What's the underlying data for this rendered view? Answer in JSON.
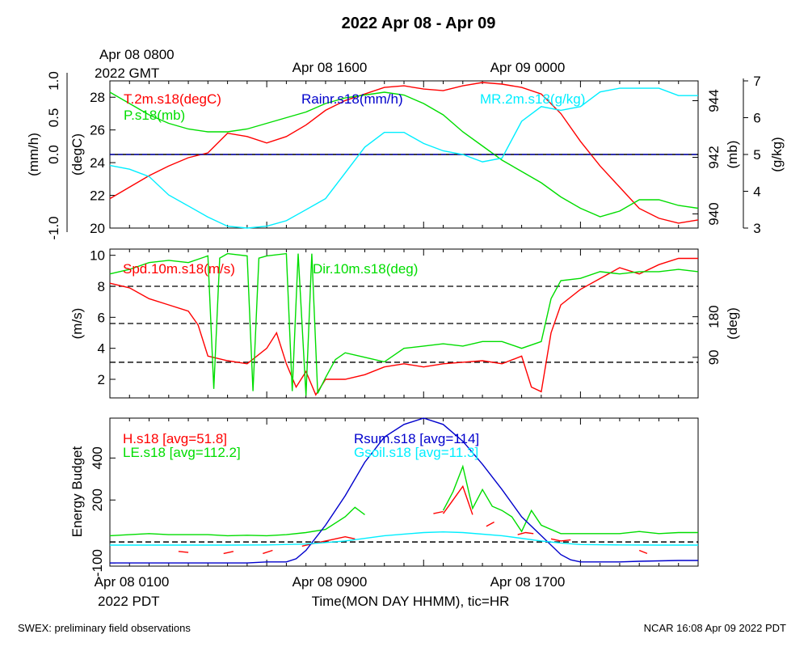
{
  "title": "2022 Apr 08 - Apr 09",
  "top_time_labels": {
    "first_line1": "Apr 08 0800",
    "first_line2": "2022 GMT",
    "second": "Apr 08 1600",
    "third": "Apr 09 0000"
  },
  "bottom_time_labels": {
    "first": "Apr 08 0100",
    "first_sub": "2022 PDT",
    "second": "Apr 08 0900",
    "third": "Apr 08 1700",
    "xlabel": "Time(MON DAY HHMM), tic=HR"
  },
  "footer": {
    "left": "SWEX: preliminary field observations",
    "right": "NCAR 16:08 Apr 09 2022 PDT"
  },
  "colors": {
    "red": "#ff0000",
    "green": "#00dd00",
    "blue": "#0000cc",
    "cyan": "#00eeff",
    "black": "#000000"
  },
  "chart_data": [
    {
      "type": "line",
      "panel": "top",
      "x_range_hours": [
        0,
        30
      ],
      "axes": {
        "left_outer": {
          "label": "(mm/h)",
          "range": [
            -1.0,
            1.0
          ],
          "ticks": [
            "-1.0",
            "0.0",
            "0.5",
            "1.0"
          ]
        },
        "left_inner": {
          "label": "(degC)",
          "range": [
            20,
            29
          ],
          "ticks": [
            "20",
            "22",
            "24",
            "26",
            "28"
          ]
        },
        "right_inner": {
          "label": "(mb)",
          "range": [
            939.5,
            944.7
          ],
          "ticks": [
            "940",
            "942",
            "944"
          ]
        },
        "right_outer": {
          "label": "(g/kg)",
          "range": [
            3,
            7
          ],
          "ticks": [
            "3",
            "4",
            "5",
            "6",
            "7"
          ]
        }
      },
      "legend": [
        "T.2m.s18(degC)",
        "P.s18(mb)",
        "Rainr.s18(mm/h)",
        "MR.2m.s18(g/kg)"
      ],
      "series": [
        {
          "name": "T.2m.s18(degC)",
          "axis": "left_inner",
          "color": "red",
          "x": [
            0,
            1,
            2,
            3,
            4,
            5,
            6,
            7,
            8,
            9,
            10,
            11,
            12,
            13,
            14,
            15,
            16,
            17,
            18,
            19,
            20,
            21,
            22,
            23,
            24,
            25,
            26,
            27,
            28,
            29,
            30
          ],
          "y": [
            21.8,
            22.5,
            23.2,
            23.8,
            24.3,
            24.6,
            25.8,
            25.6,
            25.2,
            25.6,
            26.3,
            27.2,
            27.8,
            28.2,
            28.6,
            28.7,
            28.5,
            28.4,
            28.7,
            28.9,
            28.8,
            28.6,
            28.2,
            27.0,
            25.3,
            23.8,
            22.5,
            21.2,
            20.6,
            20.3,
            20.5
          ]
        },
        {
          "name": "P.s18(mb)",
          "axis": "right_inner",
          "color": "green",
          "x": [
            0,
            1,
            2,
            3,
            4,
            5,
            6,
            7,
            8,
            9,
            10,
            11,
            12,
            13,
            14,
            15,
            16,
            17,
            18,
            19,
            20,
            21,
            22,
            23,
            24,
            25,
            26,
            27,
            28,
            29,
            30
          ],
          "y": [
            944.3,
            943.9,
            943.5,
            943.2,
            943.0,
            942.9,
            942.9,
            943.0,
            943.2,
            943.4,
            943.6,
            943.9,
            944.1,
            944.2,
            944.3,
            944.2,
            943.9,
            943.5,
            942.9,
            942.4,
            941.9,
            941.5,
            941.1,
            940.6,
            940.2,
            939.9,
            940.1,
            940.5,
            940.5,
            940.3,
            940.2
          ]
        },
        {
          "name": "Rainr.s18(mm/h)",
          "axis": "left_outer",
          "color": "blue",
          "x": [
            0,
            30
          ],
          "y": [
            0.0,
            0.0
          ]
        },
        {
          "name": "MR.2m.s18(g/kg)",
          "axis": "right_outer",
          "color": "cyan",
          "x": [
            0,
            1,
            2,
            3,
            4,
            5,
            6,
            7,
            8,
            9,
            10,
            11,
            12,
            13,
            14,
            15,
            16,
            17,
            18,
            19,
            20,
            21,
            22,
            23,
            24,
            25,
            26,
            27,
            28,
            29,
            30
          ],
          "y": [
            4.7,
            4.6,
            4.4,
            3.9,
            3.6,
            3.3,
            3.05,
            3.0,
            3.05,
            3.2,
            3.5,
            3.8,
            4.5,
            5.2,
            5.6,
            5.6,
            5.3,
            5.1,
            5.0,
            4.8,
            4.9,
            5.9,
            6.3,
            6.2,
            6.3,
            6.7,
            6.8,
            6.8,
            6.8,
            6.6,
            6.6
          ]
        }
      ]
    },
    {
      "type": "line",
      "panel": "middle",
      "x_range_hours": [
        0,
        30
      ],
      "axes": {
        "left": {
          "label": "(m/s)",
          "range": [
            0.8,
            10.4
          ],
          "ticks": [
            "2",
            "4",
            "6",
            "8",
            "10"
          ]
        },
        "right": {
          "label": "(deg)",
          "range": [
            0,
            330
          ],
          "ticks": [
            "90",
            "180"
          ]
        }
      },
      "reference_lines_m_s": [
        3.1,
        5.6,
        8.0
      ],
      "legend": [
        "Spd.10m.s18(m/s)",
        "Dir.10m.s18(deg)"
      ],
      "series": [
        {
          "name": "Spd.10m.s18(m/s)",
          "axis": "left",
          "color": "red",
          "x": [
            0,
            1,
            2,
            3,
            4,
            4.5,
            5,
            6,
            7,
            8,
            8.5,
            9,
            9.5,
            10,
            10.5,
            11,
            12,
            13,
            14,
            15,
            16,
            17,
            18,
            19,
            20,
            21,
            21.5,
            22,
            22.5,
            23,
            24,
            25,
            26,
            27,
            28,
            29,
            30
          ],
          "y": [
            8.2,
            7.9,
            7.2,
            6.8,
            6.4,
            5.5,
            3.5,
            3.2,
            3.0,
            4.0,
            5.0,
            3.0,
            1.5,
            2.5,
            1.0,
            2.0,
            2.0,
            2.3,
            2.8,
            3.0,
            2.8,
            3.0,
            3.1,
            3.2,
            3.0,
            3.5,
            1.5,
            1.2,
            5.0,
            6.8,
            7.8,
            8.5,
            9.2,
            8.8,
            9.4,
            9.8,
            9.8
          ]
        },
        {
          "name": "Dir.10m.s18(deg)",
          "axis": "right",
          "color": "green",
          "x": [
            0,
            1,
            2,
            3,
            4,
            5,
            5.3,
            5.6,
            6,
            7,
            7.3,
            7.6,
            8,
            9,
            9.3,
            9.6,
            10,
            10.3,
            10.6,
            11,
            11.5,
            12,
            13,
            14,
            15,
            16,
            17,
            18,
            19,
            20,
            21,
            22,
            22.5,
            23,
            24,
            25,
            26,
            27,
            28,
            29,
            30
          ],
          "y": [
            275,
            285,
            300,
            305,
            300,
            315,
            20,
            310,
            320,
            315,
            15,
            310,
            315,
            320,
            15,
            320,
            5,
            320,
            10,
            45,
            85,
            100,
            90,
            80,
            110,
            115,
            120,
            115,
            125,
            125,
            110,
            125,
            220,
            260,
            265,
            280,
            275,
            280,
            280,
            285,
            280
          ]
        }
      ]
    },
    {
      "type": "line",
      "panel": "bottom",
      "x_range_hours": [
        0,
        30
      ],
      "axes": {
        "left": {
          "label": "Energy Budget",
          "range": [
            -115,
            590
          ],
          "ticks": [
            "-100",
            "200",
            "400"
          ]
        }
      },
      "reference_lines": [
        0
      ],
      "legend": [
        "H.s18 [avg=51.8]",
        "LE.s18 [avg=112.2]",
        "Rsum.s18 [avg=114]",
        "Gsoil.s18 [avg=11.3]"
      ],
      "series": [
        {
          "name": "H.s18 [avg=51.8]",
          "color": "red",
          "segments": [
            {
              "x": [
                3.5,
                4.0
              ],
              "y": [
                -45,
                -50
              ]
            },
            {
              "x": [
                5.8,
                6.3
              ],
              "y": [
                -55,
                -45
              ]
            },
            {
              "x": [
                7.8,
                8.3
              ],
              "y": [
                -55,
                -40
              ]
            },
            {
              "x": [
                9.8,
                10.5,
                11.0,
                11.5,
                12.0,
                12.5
              ],
              "y": [
                -20,
                -5,
                5,
                15,
                25,
                15
              ]
            },
            {
              "x": [
                16.5,
                17.0
              ],
              "y": [
                135,
                145
              ]
            },
            {
              "x": [
                17.0,
                17.5,
                18.0,
                18.5
              ],
              "y": [
                135,
                200,
                265,
                130
              ]
            },
            {
              "x": [
                19.2,
                19.6
              ],
              "y": [
                75,
                95
              ]
            },
            {
              "x": [
                20.8,
                21.2,
                21.6
              ],
              "y": [
                35,
                45,
                40
              ]
            },
            {
              "x": [
                22.5,
                23.0,
                23.5
              ],
              "y": [
                15,
                5,
                10
              ]
            },
            {
              "x": [
                27.0,
                27.4
              ],
              "y": [
                -40,
                -55
              ]
            }
          ]
        },
        {
          "name": "LE.s18 [avg=112.2]",
          "color": "green",
          "x": [
            0,
            1,
            2,
            3,
            4,
            5,
            6,
            7,
            8,
            9,
            10,
            11,
            12,
            12.5,
            13,
            17.0,
            17.5,
            18.0,
            18.5,
            19.0,
            19.5,
            20.0,
            20.5,
            21.0,
            21.5,
            22.0,
            22.5,
            23.0,
            24,
            25,
            26,
            27,
            28,
            29,
            30
          ],
          "y": [
            30,
            35,
            40,
            35,
            35,
            35,
            30,
            32,
            30,
            35,
            45,
            60,
            120,
            165,
            130,
            150,
            240,
            360,
            160,
            250,
            170,
            150,
            120,
            50,
            150,
            80,
            60,
            40,
            40,
            40,
            40,
            50,
            40,
            45,
            45
          ],
          "gaps": [
            [
              13.2,
              16.8
            ]
          ]
        },
        {
          "name": "Rsum.s18 [avg=114]",
          "color": "blue",
          "x": [
            0,
            1,
            2,
            3,
            4,
            5,
            6,
            7,
            8,
            9,
            9.5,
            10,
            11,
            12,
            13,
            14,
            15,
            16,
            17,
            18,
            19,
            20,
            21,
            22,
            23,
            23.5,
            24,
            25,
            26,
            27,
            28,
            29,
            30
          ],
          "y": [
            -100,
            -100,
            -100,
            -100,
            -100,
            -100,
            -100,
            -100,
            -95,
            -95,
            -80,
            -40,
            80,
            220,
            380,
            500,
            560,
            590,
            560,
            480,
            370,
            250,
            120,
            30,
            -60,
            -85,
            -95,
            -95,
            -95,
            -92,
            -90,
            -88,
            -88
          ]
        },
        {
          "name": "Gsoil.s18 [avg=11.3]",
          "color": "cyan",
          "x": [
            0,
            2,
            4,
            6,
            8,
            10,
            12,
            14,
            16,
            17,
            18,
            20,
            22,
            23,
            24,
            26,
            28,
            30
          ],
          "y": [
            -15,
            -15,
            -15,
            -15,
            -14,
            -10,
            5,
            30,
            45,
            48,
            45,
            30,
            5,
            -5,
            -12,
            -14,
            -15,
            -15
          ]
        }
      ]
    }
  ]
}
